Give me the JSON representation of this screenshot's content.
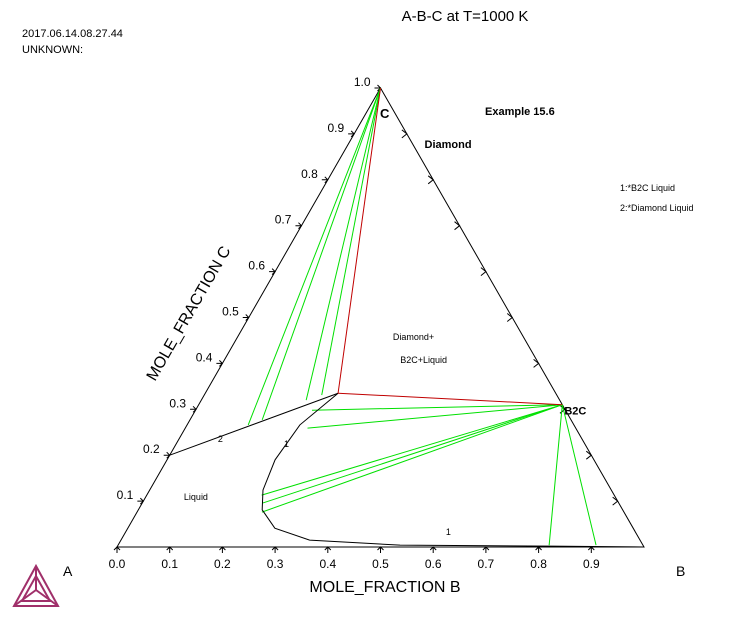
{
  "chart_data": {
    "type": "ternary",
    "title": "A-B-C at T=1000 K",
    "timestamp": "2017.06.14.08.27.44",
    "user": "UNKNOWN:",
    "annotation": "Example 15.6",
    "xlabel": "MOLE_FRACTION B",
    "ylabel": "MOLE_FRACTION C",
    "vertices": [
      "A",
      "B",
      "C"
    ],
    "xlim": [
      0,
      1
    ],
    "ylim": [
      0,
      1
    ],
    "xticks": [
      {
        "value": 0,
        "label": "0.0"
      },
      0.1,
      0.2,
      0.3,
      0.4,
      0.5,
      0.6,
      0.7,
      0.8,
      0.9
    ],
    "yticks": [
      0.1,
      0.2,
      0.3,
      0.4,
      0.5,
      0.6,
      0.7,
      0.8,
      0.9,
      {
        "value": 1,
        "label": "1.0"
      }
    ],
    "series": [
      {
        "name": "1:*B2C Liquid",
        "color": "#000000",
        "x": [
          0.252,
          0.214,
          0.205,
          0.215,
          0.235,
          0.279,
          0.358,
          0.535,
          0.821,
          1
        ],
        "y": [
          0.335,
          0.266,
          0.19,
          0.124,
          0.081,
          0.041,
          0.015,
          0.004,
          0.002,
          0
        ]
      },
      {
        "name": "2:*Diamond Liquid",
        "color": "#000000",
        "x": [
          0,
          0.252
        ],
        "y": [
          0.2,
          0.335
        ]
      }
    ],
    "phase_boundaries": {
      "color": "#c00000",
      "lines": [
        {
          "x": [
            0,
            0.252
          ],
          "y": [
            1,
            0.335
          ]
        },
        {
          "x": [
            0.252,
            0.69
          ],
          "y": [
            0.335,
            0.31
          ]
        }
      ]
    },
    "tie_lines": {
      "color": "#00e000",
      "lines": [
        {
          "x": [
            0,
            0.116
          ],
          "y": [
            1,
            0.266
          ]
        },
        {
          "x": [
            0,
            0.137
          ],
          "y": [
            1,
            0.277
          ]
        },
        {
          "x": [
            0,
            0.199
          ],
          "y": [
            1,
            0.32
          ]
        },
        {
          "x": [
            0,
            0.223
          ],
          "y": [
            1,
            0.331
          ]
        },
        {
          "x": [
            0.69,
            0.221
          ],
          "y": [
            0.31,
            0.298
          ]
        },
        {
          "x": [
            0.69,
            0.232
          ],
          "y": [
            0.31,
            0.259
          ]
        },
        {
          "x": [
            0.69,
            0.218
          ],
          "y": [
            0.31,
            0.113
          ]
        },
        {
          "x": [
            0.69,
            0.229
          ],
          "y": [
            0.31,
            0.096
          ]
        },
        {
          "x": [
            0.69,
            0.237
          ],
          "y": [
            0.31,
            0.076
          ]
        },
        {
          "x": [
            0.69,
            0.818
          ],
          "y": [
            0.31,
            0.004
          ]
        },
        {
          "x": [
            0.69,
            0.907
          ],
          "y": [
            0.31,
            0.004
          ]
        }
      ]
    },
    "compounds": [
      {
        "name": "B2C",
        "x": 0.69,
        "y": 0.31
      }
    ],
    "labels": [
      {
        "text": "Diamond",
        "x": 0.149,
        "y": 0.869
      },
      {
        "text": "Diamond+",
        "x": 0.298,
        "y": 0.451
      },
      {
        "text": "B2C+Liquid",
        "x": 0.337,
        "y": 0.401
      },
      {
        "text": "Liquid",
        "x": 0.076,
        "y": 0.102
      },
      {
        "text": "2",
        "x": 0.077,
        "y": 0.229
      },
      {
        "text": "1",
        "x": 0.208,
        "y": 0.218
      },
      {
        "text": "1",
        "x": 0.611,
        "y": 0.026
      }
    ]
  }
}
